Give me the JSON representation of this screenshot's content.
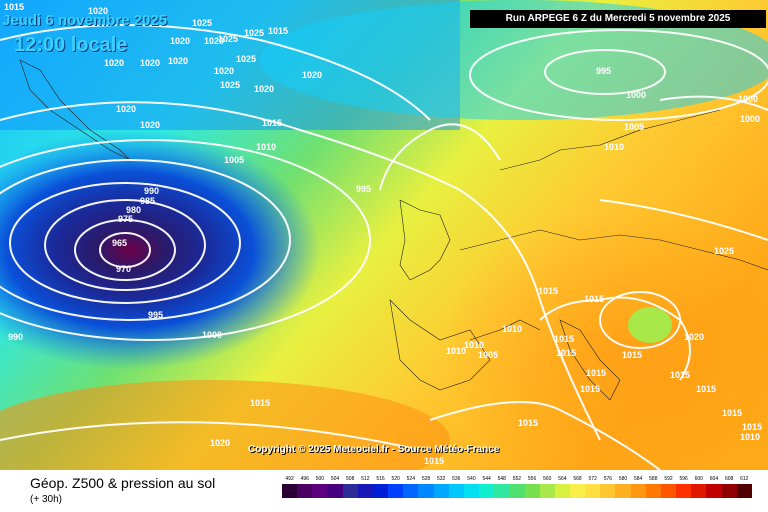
{
  "header": {
    "valid_date": "Jeudi 6 novembre 2025",
    "valid_time": "12:00 locale",
    "run_info": "Run ARPEGE 6 Z du Mercredi 5 novembre 2025"
  },
  "map": {
    "copyright": "Copyright © 2025 Meteociel.fr - Source Météo-France",
    "isobar_labels": [
      "1015",
      "1020",
      "1025",
      "1020",
      "1020",
      "1020",
      "1020",
      "1020",
      "1025",
      "1025",
      "1015",
      "1025",
      "1020",
      "1020",
      "1020",
      "1025",
      "1020",
      "1020",
      "1015",
      "1010",
      "1005",
      "995",
      "990",
      "985",
      "980",
      "975",
      "965",
      "970",
      "995",
      "1000",
      "990",
      "1015",
      "1020",
      "1015",
      "995",
      "1000",
      "1005",
      "1010",
      "1000",
      "1000",
      "1025",
      "1015",
      "1015",
      "1010",
      "1015",
      "1010",
      "1005",
      "1010",
      "1015",
      "1015",
      "1020",
      "1015",
      "1015",
      "1015",
      "1015",
      "1015",
      "1015",
      "1010",
      "1015"
    ]
  },
  "legend": {
    "title": "Géop. Z500 & pression au sol",
    "subtitle": "(+ 30h)",
    "scale_values": [
      "492",
      "496",
      "500",
      "504",
      "508",
      "512",
      "516",
      "520",
      "524",
      "528",
      "532",
      "536",
      "540",
      "544",
      "548",
      "552",
      "556",
      "560",
      "564",
      "568",
      "572",
      "576",
      "580",
      "584",
      "588",
      "592",
      "596",
      "600",
      "604",
      "608",
      "612"
    ],
    "scale_colors": [
      "#2a0033",
      "#4a0060",
      "#5d007f",
      "#44007f",
      "#2c2c9a",
      "#1818b8",
      "#0020d8",
      "#0040ff",
      "#0066ff",
      "#0088ff",
      "#00a8ff",
      "#00c8ff",
      "#00e0f0",
      "#10f0d0",
      "#30e8a0",
      "#50e070",
      "#78e050",
      "#a8e848",
      "#d8f040",
      "#f8f048",
      "#ffe040",
      "#ffc830",
      "#ffb020",
      "#ff9810",
      "#ff7800",
      "#ff5400",
      "#ff3000",
      "#e01800",
      "#c00000",
      "#900000",
      "#500000"
    ]
  }
}
